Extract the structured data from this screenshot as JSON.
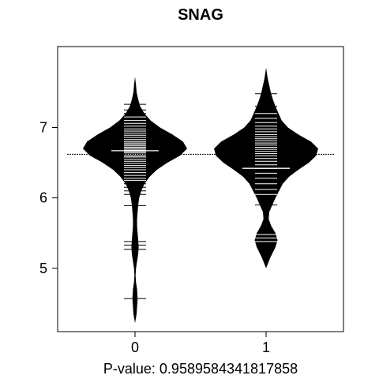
{
  "chart_data": {
    "type": "beanplot",
    "title": "SNAG",
    "xlabel": "P-value: 0.9589584341817858",
    "ylabel": "",
    "categories": [
      "0",
      "1"
    ],
    "y_ticks": [
      5,
      6,
      7
    ],
    "ylim": [
      4.1,
      8.15
    ],
    "overall_mean": 6.62,
    "series": [
      {
        "category": "0",
        "mean": 6.67,
        "y_range": [
          4.22,
          7.72
        ],
        "density": [
          [
            4.22,
            0.0
          ],
          [
            4.35,
            0.03
          ],
          [
            4.45,
            0.04
          ],
          [
            4.57,
            0.05
          ],
          [
            4.7,
            0.04
          ],
          [
            4.8,
            0.02
          ],
          [
            4.9,
            0.01
          ],
          [
            5.0,
            0.02
          ],
          [
            5.1,
            0.04
          ],
          [
            5.2,
            0.06
          ],
          [
            5.3,
            0.07
          ],
          [
            5.4,
            0.06
          ],
          [
            5.5,
            0.05
          ],
          [
            5.6,
            0.04
          ],
          [
            5.7,
            0.04
          ],
          [
            5.8,
            0.05
          ],
          [
            5.9,
            0.06
          ],
          [
            6.0,
            0.08
          ],
          [
            6.1,
            0.12
          ],
          [
            6.2,
            0.18
          ],
          [
            6.3,
            0.28
          ],
          [
            6.4,
            0.42
          ],
          [
            6.5,
            0.62
          ],
          [
            6.6,
            0.86
          ],
          [
            6.7,
            1.0
          ],
          [
            6.8,
            0.92
          ],
          [
            6.9,
            0.72
          ],
          [
            7.0,
            0.48
          ],
          [
            7.1,
            0.3
          ],
          [
            7.2,
            0.18
          ],
          [
            7.3,
            0.1
          ],
          [
            7.4,
            0.06
          ],
          [
            7.5,
            0.03
          ],
          [
            7.6,
            0.02
          ],
          [
            7.72,
            0.0
          ]
        ],
        "points": [
          4.57,
          5.27,
          5.33,
          5.38,
          5.89,
          6.05,
          6.1,
          6.15,
          6.2,
          6.25,
          6.28,
          6.32,
          6.36,
          6.4,
          6.43,
          6.46,
          6.49,
          6.52,
          6.55,
          6.58,
          6.6,
          6.62,
          6.64,
          6.66,
          6.68,
          6.7,
          6.72,
          6.74,
          6.76,
          6.78,
          6.8,
          6.83,
          6.86,
          6.89,
          6.92,
          6.95,
          6.98,
          7.02,
          7.06,
          7.1,
          7.15,
          7.2,
          7.25,
          7.33
        ]
      },
      {
        "category": "1",
        "mean": 6.42,
        "y_range": [
          5.0,
          7.85
        ],
        "density": [
          [
            5.0,
            0.0
          ],
          [
            5.15,
            0.08
          ],
          [
            5.3,
            0.18
          ],
          [
            5.4,
            0.22
          ],
          [
            5.5,
            0.18
          ],
          [
            5.6,
            0.1
          ],
          [
            5.7,
            0.05
          ],
          [
            5.8,
            0.06
          ],
          [
            5.9,
            0.12
          ],
          [
            6.0,
            0.18
          ],
          [
            6.1,
            0.25
          ],
          [
            6.2,
            0.32
          ],
          [
            6.3,
            0.44
          ],
          [
            6.4,
            0.62
          ],
          [
            6.5,
            0.82
          ],
          [
            6.6,
            0.96
          ],
          [
            6.7,
            1.0
          ],
          [
            6.8,
            0.86
          ],
          [
            6.9,
            0.62
          ],
          [
            7.0,
            0.42
          ],
          [
            7.1,
            0.3
          ],
          [
            7.2,
            0.24
          ],
          [
            7.3,
            0.18
          ],
          [
            7.4,
            0.13
          ],
          [
            7.5,
            0.09
          ],
          [
            7.6,
            0.06
          ],
          [
            7.7,
            0.03
          ],
          [
            7.85,
            0.0
          ]
        ],
        "points": [
          5.38,
          5.43,
          5.48,
          5.9,
          6.05,
          6.12,
          6.2,
          6.28,
          6.35,
          6.42,
          6.47,
          6.52,
          6.56,
          6.6,
          6.63,
          6.66,
          6.69,
          6.72,
          6.75,
          6.78,
          6.81,
          6.84,
          6.87,
          6.9,
          6.94,
          6.98,
          7.02,
          7.07,
          7.13,
          7.2,
          7.3,
          7.48
        ]
      }
    ]
  }
}
